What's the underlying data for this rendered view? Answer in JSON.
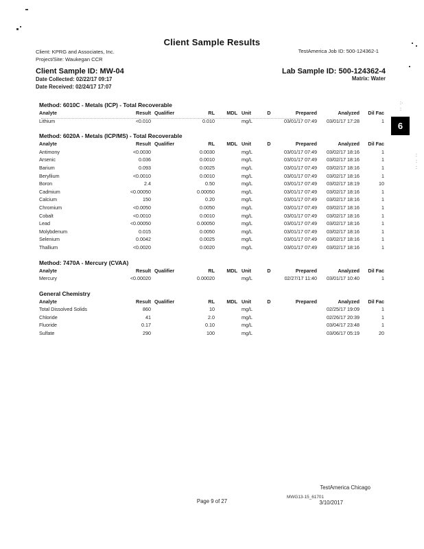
{
  "page": {
    "title": "Client Sample Results",
    "client_line": "Client: KPRG and Associates, Inc.",
    "project_line": "Project/Site: Waukegan CCR",
    "job_id": "TestAmerica Job ID: 500-124362-1",
    "client_sample_id": "Client Sample ID: MW-04",
    "lab_sample_id": "Lab Sample ID: 500-124362-4",
    "date_collected": "Date Collected: 02/22/17 09:17",
    "date_received": "Date Received: 02/24/17 17:07",
    "matrix": "Matrix: Water",
    "side_tab": "6"
  },
  "columns": [
    "Analyte",
    "Result",
    "Qualifier",
    "RL",
    "MDL",
    "Unit",
    "D",
    "Prepared",
    "Analyzed",
    "Dil Fac"
  ],
  "sections": [
    {
      "method": "Method: 6010C - Metals (ICP) - Total Recoverable",
      "rows": [
        [
          "Lithium",
          "<0.010",
          "",
          "0.010",
          "",
          "mg/L",
          "",
          "03/01/17 07:49",
          "03/01/17 17:28",
          "1"
        ]
      ]
    },
    {
      "method": "Method: 6020A - Metals (ICP/MS) - Total Recoverable",
      "rows": [
        [
          "Antimony",
          "<0.0030",
          "",
          "0.0030",
          "",
          "mg/L",
          "",
          "03/01/17 07:49",
          "03/02/17 18:16",
          "1"
        ],
        [
          "Arsenic",
          "0.036",
          "",
          "0.0010",
          "",
          "mg/L",
          "",
          "03/01/17 07:49",
          "03/02/17 18:16",
          "1"
        ],
        [
          "Barium",
          "0.093",
          "",
          "0.0025",
          "",
          "mg/L",
          "",
          "03/01/17 07:49",
          "03/02/17 18:16",
          "1"
        ],
        [
          "Beryllium",
          "<0.0010",
          "",
          "0.0010",
          "",
          "mg/L",
          "",
          "03/01/17 07:49",
          "03/02/17 18:16",
          "1"
        ],
        [
          "Boron",
          "2.4",
          "",
          "0.50",
          "",
          "mg/L",
          "",
          "03/01/17 07:49",
          "03/02/17 18:19",
          "10"
        ],
        [
          "Cadmium",
          "<0.00050",
          "",
          "0.00050",
          "",
          "mg/L",
          "",
          "03/01/17 07:49",
          "03/02/17 18:16",
          "1"
        ],
        [
          "Calcium",
          "150",
          "",
          "0.20",
          "",
          "mg/L",
          "",
          "03/01/17 07:49",
          "03/02/17 18:16",
          "1"
        ],
        [
          "Chromium",
          "<0.0050",
          "",
          "0.0050",
          "",
          "mg/L",
          "",
          "03/01/17 07:49",
          "03/02/17 18:16",
          "1"
        ],
        [
          "Cobalt",
          "<0.0010",
          "",
          "0.0010",
          "",
          "mg/L",
          "",
          "03/01/17 07:49",
          "03/02/17 18:16",
          "1"
        ],
        [
          "Lead",
          "<0.00050",
          "",
          "0.00050",
          "",
          "mg/L",
          "",
          "03/01/17 07:49",
          "03/02/17 18:16",
          "1"
        ],
        [
          "Molybdenum",
          "0.015",
          "",
          "0.0050",
          "",
          "mg/L",
          "",
          "03/01/17 07:49",
          "03/02/17 18:16",
          "1"
        ],
        [
          "Selenium",
          "0.0042",
          "",
          "0.0025",
          "",
          "mg/L",
          "",
          "03/01/17 07:49",
          "03/02/17 18:16",
          "1"
        ],
        [
          "Thallium",
          "<0.0020",
          "",
          "0.0020",
          "",
          "mg/L",
          "",
          "03/01/17 07:49",
          "03/02/17 18:16",
          "1"
        ]
      ]
    },
    {
      "method": "Method: 7470A - Mercury (CVAA)",
      "rows": [
        [
          "Mercury",
          "<0.00020",
          "",
          "0.00020",
          "",
          "mg/L",
          "",
          "02/27/17 11:40",
          "03/01/17 10:40",
          "1"
        ]
      ]
    },
    {
      "method": "General Chemistry",
      "rows": [
        [
          "Total Dissolved Solids",
          "860",
          "",
          "10",
          "",
          "mg/L",
          "",
          "",
          "02/25/17 19:09",
          "1"
        ],
        [
          "Chloride",
          "41",
          "",
          "2.0",
          "",
          "mg/L",
          "",
          "",
          "02/26/17 20:39",
          "1"
        ],
        [
          "Fluoride",
          "0.17",
          "",
          "0.10",
          "",
          "mg/L",
          "",
          "",
          "03/04/17 23:48",
          "1"
        ],
        [
          "Sulfate",
          "290",
          "",
          "100",
          "",
          "mg/L",
          "",
          "",
          "03/06/17 05:19",
          "20"
        ]
      ]
    }
  ],
  "footer": {
    "lab": "TestAmerica Chicago",
    "doc_code": "MWG13-15_61701",
    "page": "Page 9 of 27",
    "date": "3/10/2017"
  }
}
